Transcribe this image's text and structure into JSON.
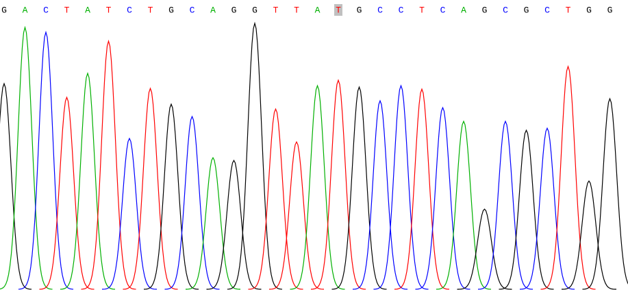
{
  "colors": {
    "A": "#00b000",
    "C": "#0000ff",
    "G": "#000000",
    "T": "#ff0000"
  },
  "bases": [
    {
      "letter": "G",
      "signal": 300
    },
    {
      "letter": "A",
      "signal": 382
    },
    {
      "letter": "C",
      "signal": 375
    },
    {
      "letter": "T",
      "signal": 280
    },
    {
      "letter": "A",
      "signal": 315
    },
    {
      "letter": "T",
      "signal": 362
    },
    {
      "letter": "C",
      "signal": 220
    },
    {
      "letter": "T",
      "signal": 293
    },
    {
      "letter": "G",
      "signal": 270
    },
    {
      "letter": "C",
      "signal": 252
    },
    {
      "letter": "A",
      "signal": 192
    },
    {
      "letter": "G",
      "signal": 188
    },
    {
      "letter": "G",
      "signal": 388
    },
    {
      "letter": "T",
      "signal": 263
    },
    {
      "letter": "T",
      "signal": 215
    },
    {
      "letter": "A",
      "signal": 297
    },
    {
      "letter": "T",
      "signal": 305,
      "highlighted": true
    },
    {
      "letter": "G",
      "signal": 295
    },
    {
      "letter": "C",
      "signal": 275
    },
    {
      "letter": "C",
      "signal": 297
    },
    {
      "letter": "T",
      "signal": 292
    },
    {
      "letter": "C",
      "signal": 265
    },
    {
      "letter": "A",
      "signal": 245
    },
    {
      "letter": "G",
      "signal": 117
    },
    {
      "letter": "C",
      "signal": 245
    },
    {
      "letter": "G",
      "signal": 232
    },
    {
      "letter": "C",
      "signal": 235
    },
    {
      "letter": "T",
      "signal": 325
    },
    {
      "letter": "G",
      "signal": 158
    },
    {
      "letter": "G",
      "signal": 278
    }
  ]
}
